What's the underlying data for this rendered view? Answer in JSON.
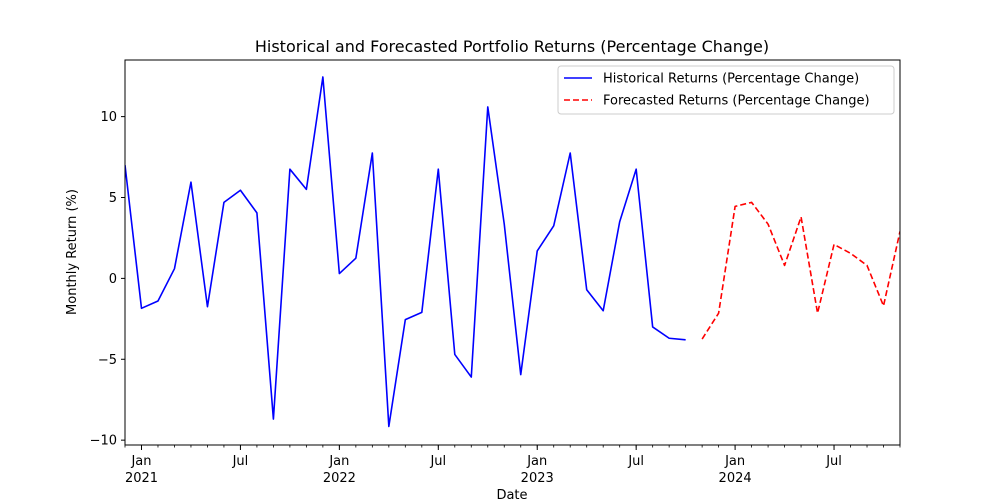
{
  "chart_data": {
    "type": "line",
    "title": "Historical and Forecasted Portfolio Returns (Percentage Change)",
    "xlabel": "Date",
    "ylabel": "Monthly Return (%)",
    "ylim": [
      -10.3,
      13.5
    ],
    "xlim": [
      "2020-12",
      "2024-11"
    ],
    "yticks": [
      -10,
      -5,
      0,
      5,
      10
    ],
    "xticks": [
      {
        "date": "2021-01",
        "label": "Jan",
        "year": "2021"
      },
      {
        "date": "2021-07",
        "label": "Jul",
        "year": ""
      },
      {
        "date": "2022-01",
        "label": "Jan",
        "year": "2022"
      },
      {
        "date": "2022-07",
        "label": "Jul",
        "year": ""
      },
      {
        "date": "2023-01",
        "label": "Jan",
        "year": "2023"
      },
      {
        "date": "2023-07",
        "label": "Jul",
        "year": ""
      },
      {
        "date": "2024-01",
        "label": "Jan",
        "year": "2024"
      },
      {
        "date": "2024-07",
        "label": "Jul",
        "year": ""
      }
    ],
    "grid": false,
    "legend_position": "top-right",
    "series": [
      {
        "name": "Historical Returns (Percentage Change)",
        "color": "#0000ff",
        "linestyle": "solid",
        "x": [
          "2020-12",
          "2021-01",
          "2021-02",
          "2021-03",
          "2021-04",
          "2021-05",
          "2021-06",
          "2021-07",
          "2021-08",
          "2021-09",
          "2021-10",
          "2021-11",
          "2021-12",
          "2022-01",
          "2022-02",
          "2022-03",
          "2022-04",
          "2022-05",
          "2022-06",
          "2022-07",
          "2022-08",
          "2022-09",
          "2022-10",
          "2022-11",
          "2022-12",
          "2023-01",
          "2023-02",
          "2023-03",
          "2023-04",
          "2023-05",
          "2023-06",
          "2023-07",
          "2023-08",
          "2023-09",
          "2023-10"
        ],
        "values": [
          7.0,
          -1.85,
          -1.4,
          0.6,
          5.95,
          -1.75,
          4.7,
          5.45,
          4.05,
          -8.7,
          6.75,
          5.5,
          12.45,
          0.3,
          1.25,
          7.75,
          -9.15,
          -2.55,
          -2.1,
          6.75,
          -4.7,
          -6.1,
          10.6,
          3.35,
          -5.95,
          1.7,
          3.25,
          7.75,
          -0.7,
          -2.0,
          3.5,
          6.75,
          -3.0,
          -3.7,
          -3.8
        ]
      },
      {
        "name": "Forecasted Returns (Percentage Change)",
        "color": "#ff0000",
        "linestyle": "dashed",
        "x": [
          "2023-11",
          "2023-12",
          "2024-01",
          "2024-02",
          "2024-03",
          "2024-04",
          "2024-05",
          "2024-06",
          "2024-07",
          "2024-08",
          "2024-09",
          "2024-10",
          "2024-11"
        ],
        "values": [
          -3.75,
          -2.15,
          4.45,
          4.7,
          3.35,
          0.8,
          3.8,
          -2.15,
          2.1,
          1.55,
          0.8,
          -1.7,
          2.9
        ]
      }
    ]
  }
}
